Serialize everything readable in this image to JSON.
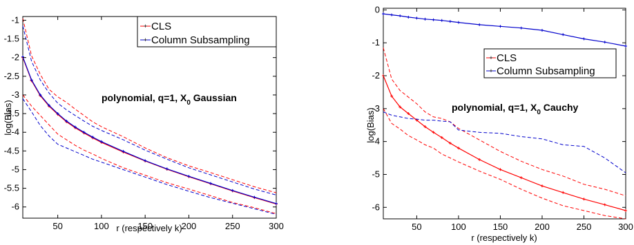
{
  "chart_data": [
    {
      "type": "line",
      "title": "",
      "xlabel": "r  (respectively k)",
      "ylabel": "log(Bias)",
      "xlim": [
        10,
        300
      ],
      "ylim": [
        -6.3,
        -0.9
      ],
      "xticks": [
        50,
        100,
        150,
        200,
        250,
        300
      ],
      "xtick_labels": [
        "50",
        "100",
        "150",
        "200",
        "250",
        "300"
      ],
      "yticks": [
        -6,
        -5.5,
        -5,
        -4.5,
        -4,
        -3.5,
        -3,
        -2.5,
        -2,
        -1.5,
        -1
      ],
      "ytick_labels": [
        "-6",
        "-5.5",
        "-5",
        "-4.5",
        "-4",
        "-3.5",
        "-3",
        "-2.5",
        "-2",
        "-1.5",
        "-1"
      ],
      "grid": false,
      "legend_position": "top-right",
      "annotation": {
        "main": "polynomial, q=1, X",
        "sub": "0",
        "tail": " Gaussian",
        "x": 180,
        "y": -2.88
      },
      "x": [
        10,
        20,
        30,
        40,
        50,
        60,
        70,
        80,
        90,
        100,
        125,
        150,
        175,
        200,
        225,
        250,
        275,
        300
      ],
      "series": [
        {
          "name": "CLS",
          "color": "#ff0000",
          "style": "solid",
          "marker": true,
          "in_legend": true,
          "values": [
            -2.0,
            -2.62,
            -3.02,
            -3.3,
            -3.52,
            -3.72,
            -3.88,
            -4.02,
            -4.15,
            -4.27,
            -4.53,
            -4.77,
            -4.99,
            -5.19,
            -5.38,
            -5.57,
            -5.75,
            -5.92
          ]
        },
        {
          "name": "Column Subsampling",
          "color": "#0000cc",
          "style": "solid",
          "marker": true,
          "in_legend": true,
          "values": [
            -1.98,
            -2.6,
            -3.0,
            -3.28,
            -3.5,
            -3.7,
            -3.86,
            -4.0,
            -4.13,
            -4.25,
            -4.51,
            -4.76,
            -4.98,
            -5.18,
            -5.37,
            -5.56,
            -5.74,
            -5.91
          ]
        },
        {
          "color": "#ff0000",
          "style": "dashed",
          "marker": false,
          "in_legend": false,
          "values": [
            -0.95,
            -1.95,
            -2.45,
            -2.85,
            -3.05,
            -3.2,
            -3.38,
            -3.55,
            -3.72,
            -3.85,
            -4.12,
            -4.42,
            -4.68,
            -4.9,
            -5.08,
            -5.27,
            -5.46,
            -5.62
          ]
        },
        {
          "color": "#0000cc",
          "style": "dashed",
          "marker": false,
          "in_legend": false,
          "values": [
            -1.15,
            -2.1,
            -2.6,
            -2.95,
            -3.22,
            -3.4,
            -3.55,
            -3.7,
            -3.84,
            -3.95,
            -4.2,
            -4.48,
            -4.72,
            -4.95,
            -5.14,
            -5.33,
            -5.52,
            -5.68
          ]
        },
        {
          "color": "#ff0000",
          "style": "dashed",
          "marker": false,
          "in_legend": false,
          "values": [
            -3.0,
            -3.3,
            -3.55,
            -3.8,
            -4.05,
            -4.2,
            -4.35,
            -4.48,
            -4.58,
            -4.7,
            -4.95,
            -5.15,
            -5.35,
            -5.52,
            -5.7,
            -5.88,
            -6.02,
            -6.18
          ]
        },
        {
          "color": "#0000cc",
          "style": "dashed",
          "marker": false,
          "in_legend": false,
          "values": [
            -3.1,
            -3.45,
            -3.82,
            -4.1,
            -4.32,
            -4.42,
            -4.52,
            -4.62,
            -4.72,
            -4.8,
            -5.0,
            -5.2,
            -5.4,
            -5.58,
            -5.75,
            -5.9,
            -6.05,
            -6.2
          ]
        }
      ]
    },
    {
      "type": "line",
      "title": "",
      "xlabel": "r  (respectively k)",
      "ylabel": "log(Bias)",
      "xlim": [
        10,
        300
      ],
      "ylim": [
        -6.35,
        0.05
      ],
      "xticks": [
        50,
        100,
        150,
        200,
        250,
        300
      ],
      "xtick_labels": [
        "50",
        "100",
        "150",
        "200",
        "250",
        "300"
      ],
      "yticks": [
        -6,
        -5,
        -4,
        -3,
        -2,
        -1,
        0
      ],
      "ytick_labels": [
        "-6",
        "-5",
        "-4",
        "-3",
        "-2",
        "-1",
        "0"
      ],
      "grid": false,
      "legend_position": "center-right",
      "annotation": {
        "main": "polynomial, q=1, X",
        "sub": "0",
        "tail": " Cauchy",
        "x": 183,
        "y": -2.82
      },
      "x": [
        10,
        20,
        30,
        40,
        50,
        60,
        70,
        80,
        90,
        100,
        125,
        150,
        175,
        200,
        225,
        250,
        275,
        300
      ],
      "series": [
        {
          "name": "CLS",
          "color": "#ff0000",
          "style": "solid",
          "marker": true,
          "in_legend": true,
          "values": [
            -2.0,
            -2.62,
            -2.95,
            -3.15,
            -3.35,
            -3.55,
            -3.72,
            -3.88,
            -4.05,
            -4.2,
            -4.55,
            -4.85,
            -5.1,
            -5.35,
            -5.55,
            -5.75,
            -5.92,
            -6.1
          ]
        },
        {
          "name": "Column Subsampling",
          "color": "#0000cc",
          "style": "solid",
          "marker": true,
          "in_legend": true,
          "values": [
            -0.12,
            -0.15,
            -0.18,
            -0.22,
            -0.25,
            -0.28,
            -0.3,
            -0.32,
            -0.35,
            -0.38,
            -0.45,
            -0.5,
            -0.55,
            -0.62,
            -0.75,
            -0.88,
            -0.98,
            -1.1
          ]
        },
        {
          "color": "#ff0000",
          "style": "dashed",
          "marker": false,
          "in_legend": false,
          "values": [
            -1.15,
            -2.1,
            -2.45,
            -2.65,
            -2.85,
            -3.1,
            -3.25,
            -3.3,
            -3.4,
            -3.6,
            -3.95,
            -4.3,
            -4.6,
            -4.85,
            -5.05,
            -5.3,
            -5.45,
            -5.65
          ]
        },
        {
          "color": "#ff0000",
          "style": "dashed",
          "marker": false,
          "in_legend": false,
          "values": [
            -3.0,
            -3.45,
            -3.62,
            -3.82,
            -3.95,
            -4.1,
            -4.2,
            -4.38,
            -4.5,
            -4.62,
            -4.9,
            -5.15,
            -5.45,
            -5.72,
            -5.95,
            -6.1,
            -6.25,
            -6.35
          ]
        },
        {
          "color": "#0000cc",
          "style": "dashed",
          "marker": false,
          "in_legend": false,
          "values": [
            -3.1,
            -3.2,
            -3.25,
            -3.3,
            -3.32,
            -3.35,
            -3.35,
            -3.38,
            -3.4,
            -3.65,
            -3.72,
            -3.75,
            -3.85,
            -3.92,
            -4.1,
            -4.15,
            -4.5,
            -4.95
          ]
        }
      ]
    }
  ]
}
